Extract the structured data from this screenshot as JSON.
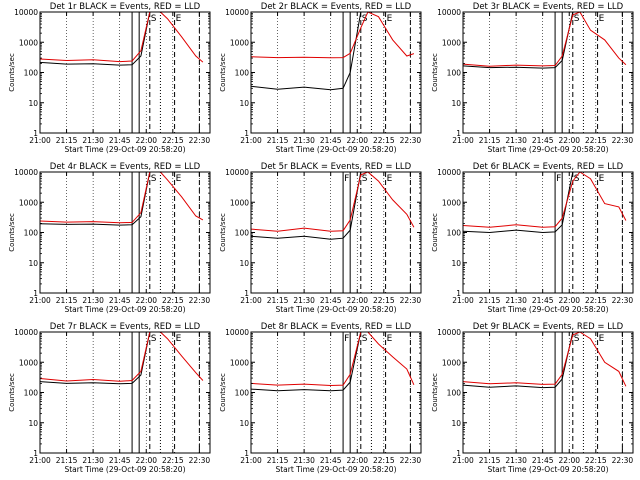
{
  "figure": {
    "colors": {
      "background": "#ffffff",
      "events": "#000000",
      "lld": "#e00000",
      "axes": "#000000"
    }
  },
  "chart_data": [
    {
      "type": "line",
      "title": "Det 1r BLACK = Events, RED = LLD",
      "xlabel": "Start Time (29-Oct-09 20:58:20)",
      "ylabel": "Counts/sec",
      "xticks": [
        "21:00",
        "21:15",
        "21:30",
        "21:45",
        "22:00",
        "22:15",
        "22:30"
      ],
      "yticks": [
        "1",
        "10",
        "100",
        "1000",
        "10000"
      ],
      "xlim": [
        "21:00",
        "22:36"
      ],
      "ylim": [
        1,
        10000
      ],
      "yscale": "log",
      "x_minutes": [
        0,
        15,
        30,
        45,
        52,
        57,
        62,
        68,
        72,
        80,
        88,
        92
      ],
      "series": [
        {
          "values": [
            215,
            190,
            195,
            175,
            180,
            350,
            10000,
            10000,
            10000,
            10000,
            10000,
            10000
          ]
        },
        {
          "values": [
            280,
            250,
            265,
            230,
            240,
            520,
            10000,
            10000,
            6000,
            1500,
            350,
            220
          ]
        }
      ],
      "markers": [
        {
          "x": 52,
          "style": "solid",
          "label": ""
        },
        {
          "x": 56,
          "style": "solid",
          "label": ""
        },
        {
          "x": 62,
          "style": "dashed",
          "label": "S"
        },
        {
          "x": 68,
          "style": "dotted",
          "label": ""
        },
        {
          "x": 76,
          "style": "dashed",
          "label": "E"
        },
        {
          "x": 90,
          "style": "dashed",
          "label": ""
        }
      ]
    },
    {
      "type": "line",
      "title": "Det 2r BLACK = Events, RED = LLD",
      "xlabel": "Start Time (29-Oct-09 20:58:20)",
      "ylabel": "Counts/sec",
      "xticks": [
        "21:00",
        "21:15",
        "21:30",
        "21:45",
        "22:00",
        "22:15",
        "22:30"
      ],
      "yticks": [
        "1",
        "10",
        "100",
        "1000",
        "10000"
      ],
      "xlim": [
        "21:00",
        "22:36"
      ],
      "ylim": [
        1,
        10000
      ],
      "yscale": "log",
      "x_minutes": [
        0,
        15,
        30,
        45,
        52,
        56,
        62,
        66,
        72,
        80,
        88,
        92
      ],
      "series": [
        {
          "values": [
            35,
            28,
            33,
            27,
            30,
            100,
            10000,
            10000,
            10000,
            10000,
            10000,
            10000
          ]
        },
        {
          "values": [
            330,
            310,
            320,
            305,
            310,
            430,
            3000,
            10000,
            7000,
            1200,
            350,
            420
          ]
        }
      ],
      "markers": [
        {
          "x": 52,
          "style": "solid",
          "label": ""
        },
        {
          "x": 56,
          "style": "solid",
          "label": ""
        },
        {
          "x": 62,
          "style": "dashed",
          "label": "S"
        },
        {
          "x": 68,
          "style": "dotted",
          "label": ""
        },
        {
          "x": 76,
          "style": "dashed",
          "label": "E"
        },
        {
          "x": 90,
          "style": "dashed",
          "label": ""
        }
      ]
    },
    {
      "type": "line",
      "title": "Det 3r BLACK = Events, RED = LLD",
      "xlabel": "Start Time (29-Oct-09 20:58:20)",
      "ylabel": "Counts/sec",
      "xticks": [
        "21:00",
        "21:15",
        "21:30",
        "21:45",
        "22:00",
        "22:15",
        "22:30"
      ],
      "yticks": [
        "1",
        "10",
        "100",
        "1000",
        "10000"
      ],
      "xlim": [
        "21:00",
        "22:36"
      ],
      "ylim": [
        1,
        10000
      ],
      "yscale": "log",
      "x_minutes": [
        0,
        15,
        30,
        45,
        52,
        56,
        62,
        66,
        72,
        80,
        88,
        92
      ],
      "series": [
        {
          "values": [
            165,
            145,
            150,
            140,
            145,
            250,
            10000,
            10000,
            10000,
            10000,
            10000,
            10000
          ]
        },
        {
          "values": [
            190,
            160,
            175,
            165,
            170,
            350,
            8000,
            10000,
            2500,
            1200,
            300,
            180
          ]
        }
      ],
      "markers": [
        {
          "x": 52,
          "style": "solid",
          "label": ""
        },
        {
          "x": 56,
          "style": "solid",
          "label": ""
        },
        {
          "x": 62,
          "style": "dashed",
          "label": "S"
        },
        {
          "x": 68,
          "style": "dotted",
          "label": ""
        },
        {
          "x": 76,
          "style": "dashed",
          "label": "E"
        },
        {
          "x": 90,
          "style": "dashed",
          "label": ""
        }
      ]
    },
    {
      "type": "line",
      "title": "Det 4r BLACK = Events, RED = LLD",
      "xlabel": "Start Time (29-Oct-09 20:58:20)",
      "ylabel": "Counts/sec",
      "xticks": [
        "21:00",
        "21:15",
        "21:30",
        "21:45",
        "22:00",
        "22:15",
        "22:30"
      ],
      "yticks": [
        "1",
        "10",
        "100",
        "1000",
        "10000"
      ],
      "xlim": [
        "21:00",
        "22:36"
      ],
      "ylim": [
        1,
        10000
      ],
      "yscale": "log",
      "x_minutes": [
        0,
        15,
        30,
        45,
        52,
        57,
        62,
        68,
        72,
        80,
        88,
        92
      ],
      "series": [
        {
          "values": [
            195,
            185,
            190,
            175,
            180,
            330,
            10000,
            10000,
            10000,
            10000,
            10000,
            10000
          ]
        },
        {
          "values": [
            240,
            220,
            230,
            210,
            215,
            450,
            10000,
            10000,
            5500,
            1500,
            350,
            260
          ]
        }
      ],
      "markers": [
        {
          "x": 52,
          "style": "solid",
          "label": ""
        },
        {
          "x": 56,
          "style": "solid",
          "label": ""
        },
        {
          "x": 62,
          "style": "dashed",
          "label": "S"
        },
        {
          "x": 68,
          "style": "dotted",
          "label": ""
        },
        {
          "x": 76,
          "style": "dashed",
          "label": "E"
        },
        {
          "x": 90,
          "style": "dashed",
          "label": ""
        }
      ]
    },
    {
      "type": "line",
      "title": "Det 5r BLACK = Events, RED = LLD",
      "xlabel": "Start Time (29-Oct-09 20:58:20)",
      "ylabel": "Counts/sec",
      "xticks": [
        "21:00",
        "21:15",
        "21:30",
        "21:45",
        "22:00",
        "22:15",
        "22:30"
      ],
      "yticks": [
        "1",
        "10",
        "100",
        "1000",
        "10000"
      ],
      "xlim": [
        "21:00",
        "22:36"
      ],
      "ylim": [
        1,
        10000
      ],
      "yscale": "log",
      "x_minutes": [
        0,
        15,
        30,
        45,
        52,
        56,
        62,
        66,
        72,
        80,
        88,
        92
      ],
      "series": [
        {
          "values": [
            75,
            65,
            75,
            60,
            65,
            120,
            10000,
            10000,
            10000,
            10000,
            10000,
            10000
          ]
        },
        {
          "values": [
            130,
            110,
            140,
            110,
            115,
            260,
            8000,
            10000,
            5000,
            1200,
            400,
            150
          ]
        }
      ],
      "markers": [
        {
          "x": 52,
          "style": "solid",
          "label": "F"
        },
        {
          "x": 56,
          "style": "solid",
          "label": ""
        },
        {
          "x": 62,
          "style": "dashed",
          "label": "S"
        },
        {
          "x": 68,
          "style": "dotted",
          "label": ""
        },
        {
          "x": 76,
          "style": "dashed",
          "label": "E"
        },
        {
          "x": 90,
          "style": "dashed",
          "label": ""
        }
      ]
    },
    {
      "type": "line",
      "title": "Det 6r BLACK = Events, RED = LLD",
      "xlabel": "Start Time (29-Oct-09 20:58:20)",
      "ylabel": "Counts/sec",
      "xticks": [
        "21:00",
        "21:15",
        "21:30",
        "21:45",
        "22:00",
        "22:15",
        "22:30"
      ],
      "yticks": [
        "1",
        "10",
        "100",
        "1000",
        "10000"
      ],
      "xlim": [
        "21:00",
        "22:36"
      ],
      "ylim": [
        1,
        10000
      ],
      "yscale": "log",
      "x_minutes": [
        0,
        15,
        30,
        45,
        52,
        56,
        62,
        66,
        72,
        80,
        88,
        92
      ],
      "series": [
        {
          "values": [
            110,
            100,
            120,
            100,
            105,
            180,
            10000,
            10000,
            10000,
            10000,
            10000,
            10000
          ]
        },
        {
          "values": [
            170,
            150,
            180,
            150,
            155,
            300,
            5000,
            10000,
            6000,
            900,
            700,
            250
          ]
        }
      ],
      "markers": [
        {
          "x": 52,
          "style": "solid",
          "label": "F"
        },
        {
          "x": 56,
          "style": "solid",
          "label": ""
        },
        {
          "x": 62,
          "style": "dashed",
          "label": "S"
        },
        {
          "x": 68,
          "style": "dotted",
          "label": ""
        },
        {
          "x": 76,
          "style": "dashed",
          "label": "E"
        },
        {
          "x": 90,
          "style": "dashed",
          "label": ""
        }
      ]
    },
    {
      "type": "line",
      "title": "Det 7r BLACK = Events, RED = LLD",
      "xlabel": "Start Time (29-Oct-09 20:58:20)",
      "ylabel": "Counts/sec",
      "xticks": [
        "21:00",
        "21:15",
        "21:30",
        "21:45",
        "22:00",
        "22:15",
        "22:30"
      ],
      "yticks": [
        "1",
        "10",
        "100",
        "1000",
        "10000"
      ],
      "xlim": [
        "21:00",
        "22:36"
      ],
      "ylim": [
        1,
        10000
      ],
      "yscale": "log",
      "x_minutes": [
        0,
        15,
        30,
        45,
        52,
        57,
        62,
        68,
        72,
        80,
        88,
        92
      ],
      "series": [
        {
          "values": [
            230,
            200,
            210,
            195,
            200,
            380,
            10000,
            10000,
            10000,
            10000,
            10000,
            10000
          ]
        },
        {
          "values": [
            290,
            240,
            270,
            235,
            250,
            500,
            10000,
            10000,
            6000,
            1600,
            450,
            250
          ]
        }
      ],
      "markers": [
        {
          "x": 52,
          "style": "solid",
          "label": ""
        },
        {
          "x": 56,
          "style": "solid",
          "label": ""
        },
        {
          "x": 62,
          "style": "dashed",
          "label": "S"
        },
        {
          "x": 68,
          "style": "dotted",
          "label": ""
        },
        {
          "x": 76,
          "style": "dashed",
          "label": "E"
        },
        {
          "x": 90,
          "style": "dashed",
          "label": ""
        }
      ]
    },
    {
      "type": "line",
      "title": "Det 8r BLACK = Events, RED = LLD",
      "xlabel": "Start Time (29-Oct-09 20:58:20)",
      "ylabel": "Counts/sec",
      "xticks": [
        "21:00",
        "21:15",
        "21:30",
        "21:45",
        "22:00",
        "22:15",
        "22:30"
      ],
      "yticks": [
        "1",
        "10",
        "100",
        "1000",
        "10000"
      ],
      "xlim": [
        "21:00",
        "22:36"
      ],
      "ylim": [
        1,
        10000
      ],
      "yscale": "log",
      "x_minutes": [
        0,
        15,
        30,
        45,
        52,
        56,
        62,
        66,
        72,
        80,
        88,
        92
      ],
      "series": [
        {
          "values": [
            130,
            115,
            125,
            115,
            120,
            220,
            10000,
            10000,
            10000,
            10000,
            10000,
            10000
          ]
        },
        {
          "values": [
            200,
            175,
            190,
            170,
            175,
            400,
            10000,
            10000,
            4000,
            1500,
            600,
            180
          ]
        }
      ],
      "markers": [
        {
          "x": 52,
          "style": "solid",
          "label": "F"
        },
        {
          "x": 56,
          "style": "solid",
          "label": ""
        },
        {
          "x": 62,
          "style": "dashed",
          "label": "S"
        },
        {
          "x": 68,
          "style": "dotted",
          "label": ""
        },
        {
          "x": 76,
          "style": "dashed",
          "label": "E"
        },
        {
          "x": 90,
          "style": "dashed",
          "label": ""
        }
      ]
    },
    {
      "type": "line",
      "title": "Det 9r BLACK = Events, RED = LLD",
      "xlabel": "Start Time (29-Oct-09 20:58:20)",
      "ylabel": "Counts/sec",
      "xticks": [
        "21:00",
        "21:15",
        "21:30",
        "21:45",
        "22:00",
        "22:15",
        "22:30"
      ],
      "yticks": [
        "1",
        "10",
        "100",
        "1000",
        "10000"
      ],
      "xlim": [
        "21:00",
        "22:36"
      ],
      "ylim": [
        1,
        10000
      ],
      "yscale": "log",
      "x_minutes": [
        0,
        15,
        30,
        45,
        52,
        56,
        62,
        66,
        72,
        80,
        88,
        92
      ],
      "series": [
        {
          "values": [
            175,
            150,
            165,
            145,
            150,
            280,
            10000,
            10000,
            10000,
            10000,
            10000,
            10000
          ]
        },
        {
          "values": [
            230,
            195,
            210,
            185,
            190,
            400,
            8000,
            10000,
            6000,
            1000,
            500,
            160
          ]
        }
      ],
      "markers": [
        {
          "x": 52,
          "style": "solid",
          "label": ""
        },
        {
          "x": 56,
          "style": "solid",
          "label": ""
        },
        {
          "x": 62,
          "style": "dashed",
          "label": "S"
        },
        {
          "x": 68,
          "style": "dotted",
          "label": ""
        },
        {
          "x": 76,
          "style": "dashed",
          "label": "E"
        },
        {
          "x": 90,
          "style": "dashed",
          "label": ""
        }
      ]
    }
  ]
}
